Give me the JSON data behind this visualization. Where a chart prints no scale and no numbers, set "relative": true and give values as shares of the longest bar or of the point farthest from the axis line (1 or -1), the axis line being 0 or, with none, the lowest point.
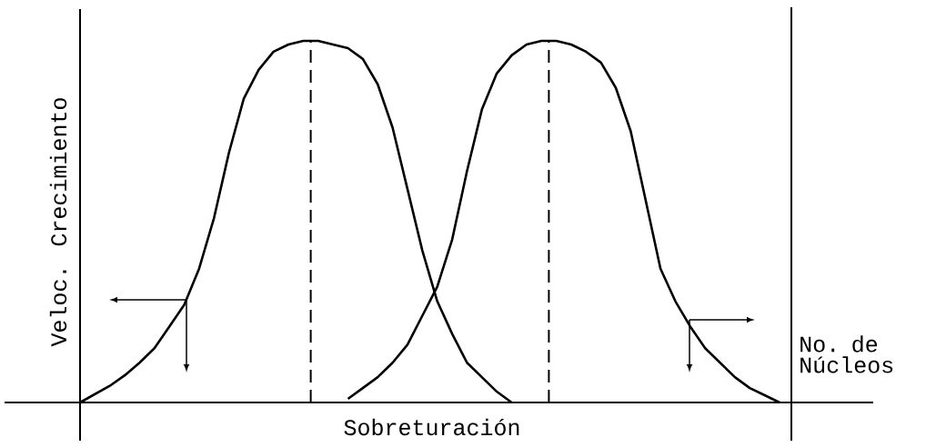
{
  "chart_data": {
    "type": "line",
    "relative": true,
    "xlabel": "Sobreturación",
    "ylabel": "Veloc. Crecimiento",
    "y2label": "No. de Núcleos",
    "categories": [
      null,
      null,
      null,
      null,
      null,
      null,
      null,
      null,
      null,
      null,
      null,
      null,
      null,
      null,
      null,
      null,
      null,
      null,
      null,
      null,
      null,
      null,
      null,
      null,
      null,
      null,
      null,
      null,
      null,
      null,
      null,
      null,
      null,
      null,
      null,
      null,
      null,
      null,
      null,
      null,
      null,
      null,
      null,
      null,
      null,
      null,
      null,
      null
    ],
    "series": [
      {
        "color": "#000000",
        "values": [
          0,
          0.023,
          0.046,
          0.075,
          0.11,
          0.15,
          0.21,
          0.27,
          0.37,
          0.51,
          0.69,
          0.84,
          0.92,
          0.97,
          0.99,
          1,
          1,
          0.99,
          0.98,
          0.95,
          0.88,
          0.76,
          0.59,
          0.42,
          0.28,
          0.19,
          0.11,
          0.07,
          0.03,
          0,
          null,
          null,
          null,
          null,
          null,
          null,
          null,
          null,
          null,
          null,
          null,
          null,
          null,
          null,
          null,
          null,
          null,
          null
        ]
      },
      {
        "color": "#000000",
        "values": [
          null,
          null,
          null,
          null,
          null,
          null,
          null,
          null,
          null,
          null,
          null,
          null,
          null,
          null,
          null,
          null,
          null,
          null,
          0.01,
          0.04,
          0.07,
          0.11,
          0.16,
          0.24,
          0.32,
          0.45,
          0.64,
          0.81,
          0.91,
          0.96,
          0.99,
          1,
          1,
          0.99,
          0.97,
          0.94,
          0.87,
          0.75,
          0.56,
          0.37,
          0.28,
          0.21,
          0.15,
          0.11,
          0.07,
          0.04,
          0.02,
          0
        ]
      }
    ]
  }
}
